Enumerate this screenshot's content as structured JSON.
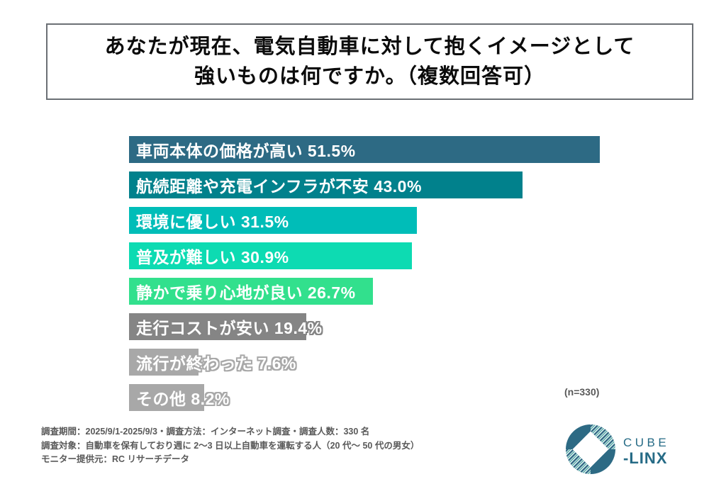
{
  "title": {
    "line1": "あなたが現在、電気自動車に対して抱くイメージとして",
    "line2": "強いものは何ですか。（複数回答可）"
  },
  "chart_data": {
    "type": "bar",
    "orientation": "horizontal",
    "title": "あなたが現在、電気自動車に対して抱くイメージとして強いものは何ですか。（複数回答可）",
    "categories": [
      "車両本体の価格が高い",
      "航続距離や充電インフラが不安",
      "環境に優しい",
      "普及が難しい",
      "静かで乗り心地が良い",
      "走行コストが安い",
      "流行が終わった",
      "その他"
    ],
    "values": [
      51.5,
      43.0,
      31.5,
      30.9,
      26.7,
      19.4,
      7.6,
      8.2
    ],
    "value_suffix": "%",
    "bar_colors": [
      "#2D6A84",
      "#01818C",
      "#00BDB8",
      "#0DDBB2",
      "#32E08D",
      "#858585",
      "#A8A8A8",
      "#A8A8A8"
    ],
    "label_color": "#ffffff",
    "labels_inside_bars": true,
    "xlim": [
      0,
      55
    ],
    "grid": false,
    "legend": false,
    "sample_note": "(n=330)",
    "sample_size": 330
  },
  "footer": {
    "lines": [
      "調査期間：2025/9/1-2025/9/3・調査方法：インターネット調査・調査人数：330 名",
      "調査対象：自動車を保有しており週に 2〜3 日以上自動車を運転する人（20 代〜 50 代の男女）",
      "モニター提供元：RC リサーチデータ"
    ]
  },
  "logo": {
    "brand_top": "CUBE",
    "brand_prefix": "-",
    "brand_bottom": "LINX",
    "color": "#266B86",
    "icon_solid_color": "#2D6A84",
    "icon_stripe_color": "#56ABA8"
  }
}
